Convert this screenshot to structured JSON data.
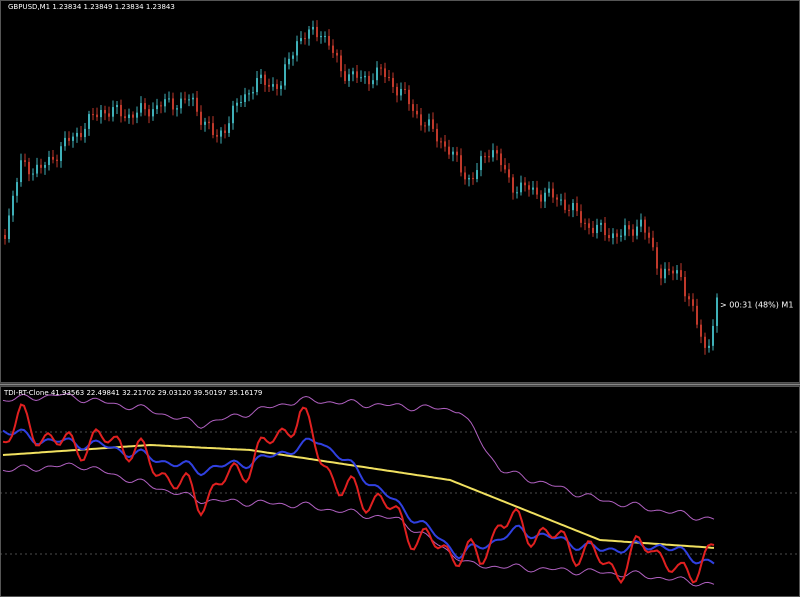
{
  "main_panel": {
    "symbol_info": "GBPUSD,M1  1.23834 1.23849 1.23834 1.23843",
    "timer": "> 00:31 (48%) M1"
  },
  "indicator_panel": {
    "info": "TDI-RT-Clone 41.93563 22.49841 32.21702 29.03120 39.50197 35.16179"
  }
}
